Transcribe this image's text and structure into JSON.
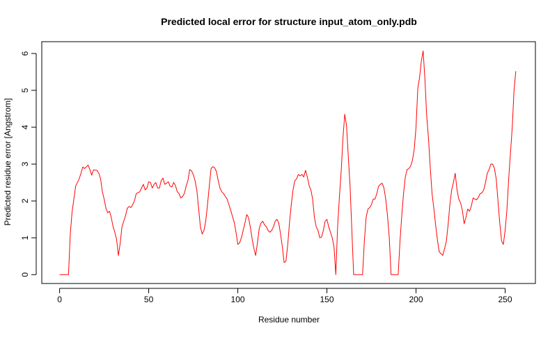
{
  "chart_data": {
    "type": "line",
    "title": "Predicted local error for structure input_atom_only.pdb",
    "xlabel": "Residue number",
    "ylabel": "Predicted residue error [Angstrom]",
    "xlim": [
      -10,
      267
    ],
    "ylim": [
      -0.24,
      6.32
    ],
    "x_ticks": [
      0,
      50,
      100,
      150,
      200,
      250
    ],
    "y_ticks": [
      0,
      1,
      2,
      3,
      4,
      5,
      6
    ],
    "grid": false,
    "legend": "none",
    "series": [
      {
        "color": "#ff0000",
        "points": [
          [
            0,
            0
          ],
          [
            5,
            0
          ],
          [
            6,
            1.1
          ],
          [
            7,
            1.7
          ],
          [
            8,
            2.05
          ],
          [
            9,
            2.4
          ],
          [
            11,
            2.6
          ],
          [
            12,
            2.75
          ],
          [
            13,
            2.92
          ],
          [
            14,
            2.88
          ],
          [
            16,
            2.97
          ],
          [
            17,
            2.85
          ],
          [
            18,
            2.7
          ],
          [
            19,
            2.84
          ],
          [
            21,
            2.83
          ],
          [
            22,
            2.75
          ],
          [
            23,
            2.6
          ],
          [
            24,
            2.25
          ],
          [
            25,
            2.05
          ],
          [
            26,
            1.8
          ],
          [
            27,
            1.68
          ],
          [
            28,
            1.72
          ],
          [
            29,
            1.55
          ],
          [
            30,
            1.3
          ],
          [
            31,
            1.15
          ],
          [
            32,
            0.95
          ],
          [
            33,
            0.52
          ],
          [
            34,
            0.85
          ],
          [
            35,
            1.3
          ],
          [
            36,
            1.45
          ],
          [
            37,
            1.6
          ],
          [
            38,
            1.8
          ],
          [
            39,
            1.85
          ],
          [
            40,
            1.82
          ],
          [
            41,
            1.9
          ],
          [
            42,
            2.0
          ],
          [
            43,
            2.2
          ],
          [
            45,
            2.25
          ],
          [
            46,
            2.35
          ],
          [
            47,
            2.45
          ],
          [
            48,
            2.3
          ],
          [
            49,
            2.35
          ],
          [
            50,
            2.52
          ],
          [
            51,
            2.5
          ],
          [
            52,
            2.35
          ],
          [
            53,
            2.45
          ],
          [
            54,
            2.5
          ],
          [
            55,
            2.35
          ],
          [
            56,
            2.35
          ],
          [
            57,
            2.55
          ],
          [
            58,
            2.62
          ],
          [
            59,
            2.45
          ],
          [
            60,
            2.48
          ],
          [
            61,
            2.52
          ],
          [
            62,
            2.4
          ],
          [
            63,
            2.38
          ],
          [
            64,
            2.5
          ],
          [
            65,
            2.42
          ],
          [
            66,
            2.25
          ],
          [
            67,
            2.2
          ],
          [
            68,
            2.08
          ],
          [
            69,
            2.12
          ],
          [
            70,
            2.2
          ],
          [
            71,
            2.4
          ],
          [
            72,
            2.55
          ],
          [
            73,
            2.85
          ],
          [
            74,
            2.82
          ],
          [
            75,
            2.72
          ],
          [
            76,
            2.55
          ],
          [
            77,
            2.3
          ],
          [
            78,
            1.8
          ],
          [
            79,
            1.3
          ],
          [
            80,
            1.1
          ],
          [
            81,
            1.2
          ],
          [
            82,
            1.45
          ],
          [
            83,
            1.9
          ],
          [
            84,
            2.4
          ],
          [
            85,
            2.88
          ],
          [
            86,
            2.93
          ],
          [
            87,
            2.9
          ],
          [
            88,
            2.8
          ],
          [
            89,
            2.55
          ],
          [
            90,
            2.35
          ],
          [
            91,
            2.25
          ],
          [
            92,
            2.2
          ],
          [
            94,
            2.05
          ],
          [
            95,
            1.9
          ],
          [
            96,
            1.75
          ],
          [
            97,
            1.58
          ],
          [
            98,
            1.42
          ],
          [
            99,
            1.15
          ],
          [
            100,
            0.82
          ],
          [
            101,
            0.86
          ],
          [
            102,
            1.0
          ],
          [
            103,
            1.2
          ],
          [
            104,
            1.4
          ],
          [
            105,
            1.63
          ],
          [
            106,
            1.55
          ],
          [
            107,
            1.3
          ],
          [
            108,
            0.98
          ],
          [
            109,
            0.72
          ],
          [
            110,
            0.52
          ],
          [
            111,
            0.85
          ],
          [
            112,
            1.25
          ],
          [
            113,
            1.4
          ],
          [
            114,
            1.45
          ],
          [
            115,
            1.35
          ],
          [
            116,
            1.3
          ],
          [
            117,
            1.2
          ],
          [
            118,
            1.15
          ],
          [
            119,
            1.2
          ],
          [
            120,
            1.3
          ],
          [
            121,
            1.45
          ],
          [
            122,
            1.5
          ],
          [
            123,
            1.4
          ],
          [
            124,
            1.1
          ],
          [
            125,
            0.75
          ],
          [
            126,
            0.33
          ],
          [
            127,
            0.36
          ],
          [
            128,
            0.8
          ],
          [
            129,
            1.4
          ],
          [
            130,
            1.9
          ],
          [
            131,
            2.3
          ],
          [
            132,
            2.55
          ],
          [
            133,
            2.6
          ],
          [
            134,
            2.72
          ],
          [
            135,
            2.68
          ],
          [
            136,
            2.72
          ],
          [
            137,
            2.65
          ],
          [
            138,
            2.83
          ],
          [
            139,
            2.65
          ],
          [
            140,
            2.42
          ],
          [
            141,
            2.3
          ],
          [
            142,
            2.05
          ],
          [
            143,
            1.55
          ],
          [
            144,
            1.3
          ],
          [
            145,
            1.2
          ],
          [
            146,
            1.0
          ],
          [
            147,
            1.02
          ],
          [
            148,
            1.2
          ],
          [
            149,
            1.45
          ],
          [
            150,
            1.5
          ],
          [
            151,
            1.3
          ],
          [
            152,
            1.15
          ],
          [
            153,
            1.0
          ],
          [
            154,
            0.75
          ],
          [
            155,
            0.0
          ],
          [
            156,
            1.3
          ],
          [
            157,
            2.1
          ],
          [
            158,
            2.8
          ],
          [
            159,
            3.7
          ],
          [
            160,
            4.35
          ],
          [
            161,
            4.05
          ],
          [
            162,
            3.2
          ],
          [
            163,
            2.4
          ],
          [
            164,
            1.2
          ],
          [
            165,
            0.0
          ],
          [
            170,
            0.0
          ],
          [
            171,
            0.9
          ],
          [
            172,
            1.55
          ],
          [
            173,
            1.78
          ],
          [
            174,
            1.82
          ],
          [
            175,
            1.9
          ],
          [
            176,
            2.05
          ],
          [
            177,
            2.05
          ],
          [
            178,
            2.2
          ],
          [
            179,
            2.4
          ],
          [
            180,
            2.45
          ],
          [
            181,
            2.48
          ],
          [
            182,
            2.35
          ],
          [
            183,
            2.05
          ],
          [
            184,
            1.6
          ],
          [
            185,
            1.0
          ],
          [
            186,
            0.0
          ],
          [
            190,
            0.0
          ],
          [
            191,
            0.9
          ],
          [
            192,
            1.6
          ],
          [
            193,
            2.2
          ],
          [
            194,
            2.65
          ],
          [
            195,
            2.85
          ],
          [
            196,
            2.88
          ],
          [
            197,
            2.95
          ],
          [
            198,
            3.1
          ],
          [
            199,
            3.4
          ],
          [
            200,
            4.0
          ],
          [
            201,
            5.05
          ],
          [
            202,
            5.35
          ],
          [
            203,
            5.8
          ],
          [
            204,
            6.07
          ],
          [
            205,
            5.3
          ],
          [
            206,
            4.3
          ],
          [
            207,
            3.7
          ],
          [
            208,
            2.9
          ],
          [
            209,
            2.2
          ],
          [
            210,
            1.8
          ],
          [
            211,
            1.35
          ],
          [
            212,
            0.95
          ],
          [
            213,
            0.62
          ],
          [
            215,
            0.52
          ],
          [
            216,
            0.7
          ],
          [
            217,
            0.9
          ],
          [
            218,
            1.35
          ],
          [
            219,
            1.9
          ],
          [
            220,
            2.3
          ],
          [
            221,
            2.5
          ],
          [
            222,
            2.75
          ],
          [
            223,
            2.3
          ],
          [
            224,
            2.05
          ],
          [
            225,
            1.95
          ],
          [
            226,
            1.75
          ],
          [
            227,
            1.38
          ],
          [
            228,
            1.55
          ],
          [
            229,
            1.78
          ],
          [
            230,
            1.72
          ],
          [
            231,
            1.85
          ],
          [
            232,
            2.08
          ],
          [
            233,
            2.05
          ],
          [
            234,
            2.03
          ],
          [
            235,
            2.1
          ],
          [
            236,
            2.2
          ],
          [
            237,
            2.22
          ],
          [
            238,
            2.3
          ],
          [
            239,
            2.5
          ],
          [
            240,
            2.75
          ],
          [
            241,
            2.85
          ],
          [
            242,
            3.0
          ],
          [
            243,
            3.0
          ],
          [
            244,
            2.88
          ],
          [
            245,
            2.6
          ],
          [
            246,
            2.0
          ],
          [
            247,
            1.4
          ],
          [
            248,
            0.92
          ],
          [
            249,
            0.82
          ],
          [
            250,
            1.2
          ],
          [
            251,
            1.75
          ],
          [
            252,
            2.6
          ],
          [
            253,
            3.3
          ],
          [
            254,
            4.0
          ],
          [
            255,
            5.0
          ],
          [
            256,
            5.52
          ]
        ]
      }
    ]
  }
}
